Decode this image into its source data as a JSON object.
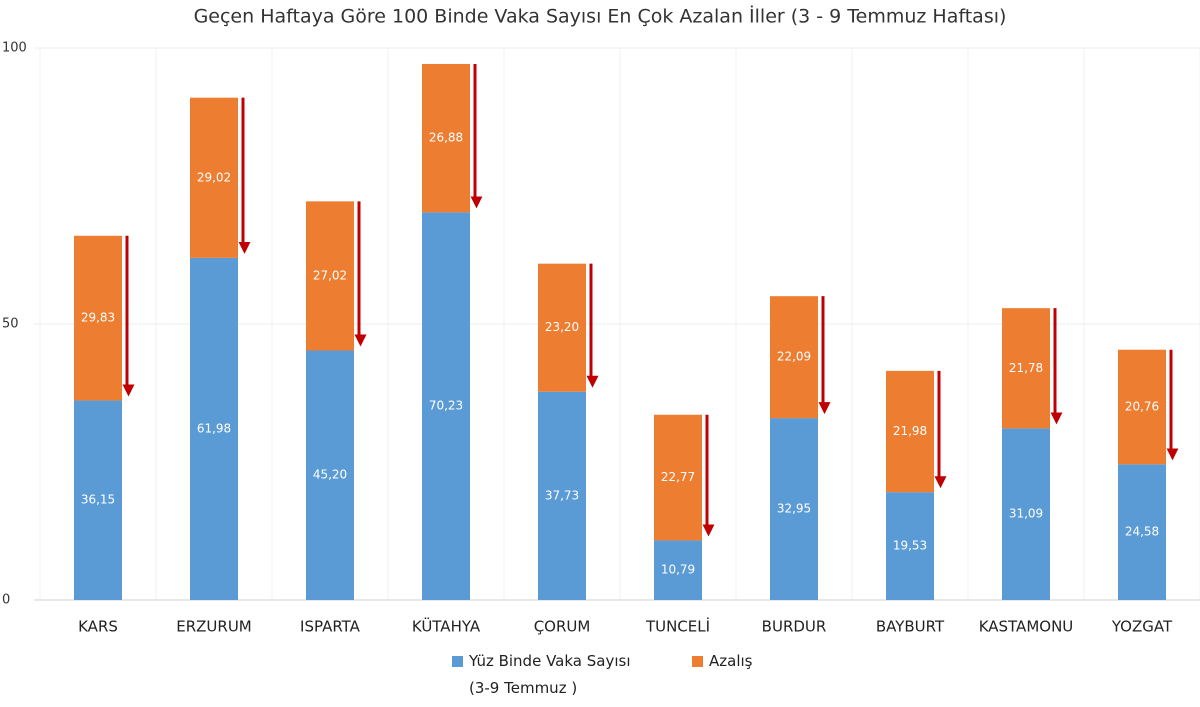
{
  "chart_data": {
    "type": "stacked-bar",
    "title": "Geçen Haftaya Göre 100 Binde Vaka Sayısı En Çok Azalan İller (3 - 9 Temmuz Haftası)",
    "categories": [
      "KARS",
      "ERZURUM",
      "ISPARTA",
      "KÜTAHYA",
      "ÇORUM",
      "TUNCELİ",
      "BURDUR",
      "BAYBURT",
      "KASTAMONU",
      "YOZGAT"
    ],
    "series": [
      {
        "name": "Yüz Binde Vaka Sayısı\n(3-9 Temmuz )",
        "color": "#5b9bd5",
        "values": [
          36.15,
          61.98,
          45.2,
          70.23,
          37.73,
          10.79,
          32.95,
          19.53,
          31.09,
          24.58
        ],
        "value_labels": [
          "36,15",
          "61,98",
          "45,20",
          "70,23",
          "37,73",
          "10,79",
          "32,95",
          "19,53",
          "31,09",
          "24,58"
        ]
      },
      {
        "name": "Azalış",
        "color": "#ed7d31",
        "values": [
          29.83,
          29.02,
          27.02,
          26.88,
          23.2,
          22.77,
          22.09,
          21.98,
          21.78,
          20.76
        ],
        "value_labels": [
          "29,83",
          "29,02",
          "27,02",
          "26,88",
          "23,20",
          "22,77",
          "22,09",
          "21,98",
          "21,78",
          "20,76"
        ]
      }
    ],
    "arrow_color": "#c00000",
    "ylim": [
      0,
      100
    ],
    "yticks": [
      0,
      50,
      100
    ],
    "grid": true
  }
}
